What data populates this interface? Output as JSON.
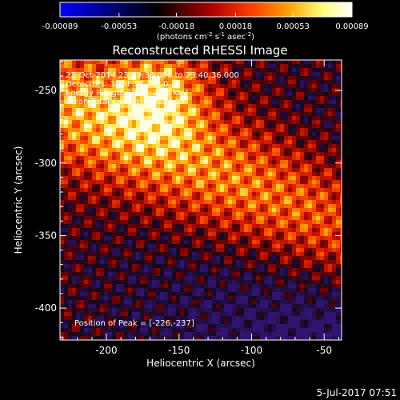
{
  "colorbar": {
    "ticks": [
      "-0.00089",
      "-0.00053",
      "-0.00018",
      "0.00018",
      "0.00053",
      "0.00089"
    ],
    "tick_values": [
      -0.00089,
      -0.00053,
      -0.00018,
      0.00018,
      0.00053,
      0.00089
    ],
    "range": [
      -0.00089,
      0.00089
    ],
    "unit_prefix": "(photons cm",
    "unit_exp1": "-2",
    "unit_mid": " s",
    "unit_exp2": "-1",
    "unit_mid2": " asec",
    "unit_exp3": "-2",
    "unit_suffix": ")",
    "colors": [
      "#0000ff",
      "#000000",
      "#b00000",
      "#ff4000",
      "#ffa000",
      "#ffff80",
      "#ffffff"
    ]
  },
  "chart_data": {
    "type": "heatmap",
    "title": "Reconstructed RHESSI Image",
    "xlabel": "Heliocentric X (arcsec)",
    "ylabel": "Heliocentric Y (arcsec)",
    "xlim": [
      -232,
      -38
    ],
    "ylim": [
      -422,
      -229
    ],
    "xticks": [
      -200,
      -150,
      -100,
      -50
    ],
    "yticks": [
      -250,
      -300,
      -350,
      -400
    ],
    "peak_position": [
      -226,
      -237
    ],
    "annotations": [
      "22-Oct-2014 23:39:36.000 to 23:40:36.000",
      "Detectors: 3F 6F 9F, Att 0",
      "Energy Range: 12.0 - 25.0 keV",
      "Clean   Total Counts: 3.72E+03",
      "Position of Peak = [-226,-237]"
    ]
  },
  "footer": {
    "date": "5-Jul-2017 07:51"
  }
}
